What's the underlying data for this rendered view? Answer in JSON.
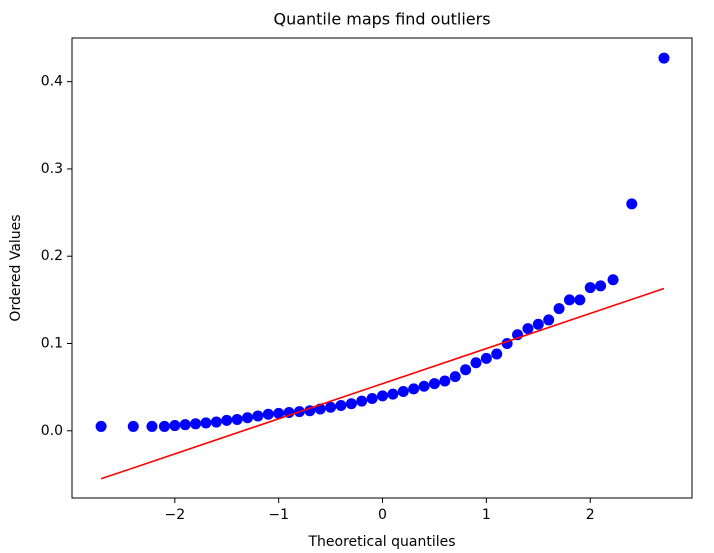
{
  "chart_data": {
    "type": "scatter",
    "title": "Quantile maps find outliers",
    "xlabel": "Theoretical quantiles",
    "ylabel": "Ordered Values",
    "xlim": [
      -2.99,
      2.98
    ],
    "ylim": [
      -0.077,
      0.45
    ],
    "xticks": [
      {
        "value": -2,
        "label": "−2"
      },
      {
        "value": -1,
        "label": "−1"
      },
      0,
      1,
      2
    ],
    "yticks": [
      {
        "value": 0,
        "label": "0.0"
      },
      0.1,
      0.2,
      0.3,
      0.4
    ],
    "series": [
      {
        "type": "scatter",
        "color": "#0000ff",
        "x": [
          -2.71,
          -2.4,
          -2.22,
          -2.1,
          -2.0,
          -1.9,
          -1.8,
          -1.7,
          -1.6,
          -1.5,
          -1.4,
          -1.3,
          -1.2,
          -1.1,
          -1.0,
          -0.9,
          -0.8,
          -0.7,
          -0.6,
          -0.5,
          -0.4,
          -0.3,
          -0.2,
          -0.1,
          0,
          0.1,
          0.2,
          0.3,
          0.4,
          0.5,
          0.6,
          0.7,
          0.8,
          0.9,
          1.0,
          1.1,
          1.2,
          1.3,
          1.4,
          1.5,
          1.6,
          1.7,
          1.8,
          1.9,
          2.0,
          2.1,
          2.22,
          2.4,
          2.71
        ],
        "values": [
          0.005,
          0.005,
          0.005,
          0.005,
          0.006,
          0.007,
          0.008,
          0.009,
          0.01,
          0.012,
          0.013,
          0.015,
          0.017,
          0.019,
          0.02,
          0.021,
          0.022,
          0.023,
          0.025,
          0.027,
          0.029,
          0.031,
          0.034,
          0.037,
          0.04,
          0.042,
          0.045,
          0.048,
          0.051,
          0.054,
          0.057,
          0.062,
          0.07,
          0.078,
          0.083,
          0.088,
          0.1,
          0.11,
          0.117,
          0.122,
          0.127,
          0.14,
          0.15,
          0.15,
          0.164,
          0.166,
          0.173,
          0.26,
          0.427
        ]
      },
      {
        "type": "line",
        "color": "#ff0000",
        "x": [
          -2.71,
          2.71
        ],
        "values": [
          -0.055,
          0.163
        ]
      }
    ]
  }
}
